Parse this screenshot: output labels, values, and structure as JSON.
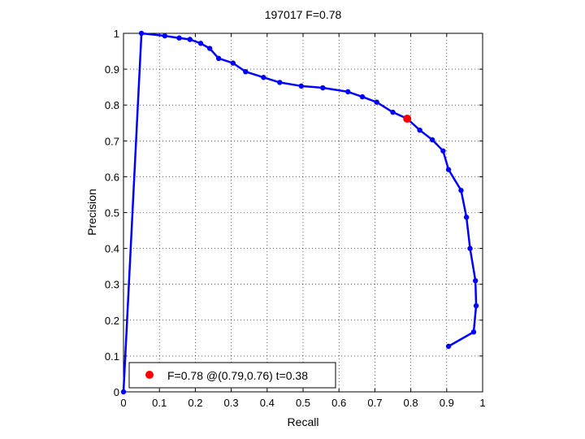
{
  "chart_data": {
    "type": "line",
    "title": "197017 F=0.78",
    "xlabel": "Recall",
    "ylabel": "Precision",
    "xlim": [
      0,
      1
    ],
    "ylim": [
      0,
      1
    ],
    "xticks": [
      "0",
      "0.1",
      "0.2",
      "0.3",
      "0.4",
      "0.5",
      "0.6",
      "0.7",
      "0.8",
      "0.9",
      "1"
    ],
    "yticks": [
      "0",
      "0.1",
      "0.2",
      "0.3",
      "0.4",
      "0.5",
      "0.6",
      "0.7",
      "0.8",
      "0.9",
      "1"
    ],
    "grid": true,
    "series": [
      {
        "color": "#0000ff",
        "marker": "circle",
        "points": [
          [
            0.0,
            0.0
          ],
          [
            0.05,
            1.0
          ],
          [
            0.115,
            0.993
          ],
          [
            0.155,
            0.987
          ],
          [
            0.185,
            0.983
          ],
          [
            0.215,
            0.972
          ],
          [
            0.24,
            0.958
          ],
          [
            0.265,
            0.93
          ],
          [
            0.305,
            0.917
          ],
          [
            0.34,
            0.893
          ],
          [
            0.39,
            0.877
          ],
          [
            0.435,
            0.863
          ],
          [
            0.495,
            0.853
          ],
          [
            0.555,
            0.848
          ],
          [
            0.625,
            0.837
          ],
          [
            0.665,
            0.823
          ],
          [
            0.705,
            0.808
          ],
          [
            0.75,
            0.78
          ],
          [
            0.79,
            0.762
          ],
          [
            0.825,
            0.73
          ],
          [
            0.86,
            0.703
          ],
          [
            0.89,
            0.672
          ],
          [
            0.905,
            0.62
          ],
          [
            0.94,
            0.562
          ],
          [
            0.955,
            0.487
          ],
          [
            0.965,
            0.4
          ],
          [
            0.98,
            0.31
          ],
          [
            0.982,
            0.24
          ],
          [
            0.975,
            0.167
          ],
          [
            0.905,
            0.127
          ]
        ]
      }
    ],
    "highlight": {
      "x": 0.79,
      "y": 0.762,
      "color": "#ff0000"
    },
    "legend": {
      "position": "bottom-left",
      "entries": [
        {
          "label": "F=0.78 @(0.79,0.76) t=0.38",
          "color": "#ff0000"
        }
      ]
    }
  }
}
